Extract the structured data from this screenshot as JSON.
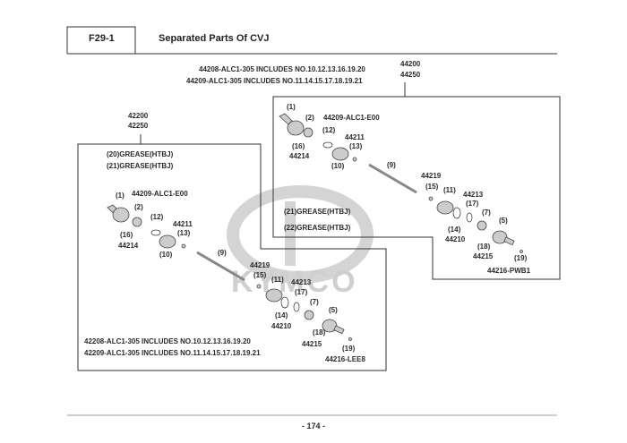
{
  "header": {
    "code": "F29-1",
    "title": "Separated Parts Of CVJ"
  },
  "page_number": "- 174 -",
  "watermark": "KYMCO",
  "right_assembly": {
    "includes": [
      "44208-ALC1-305 INCLUDES NO.10.12.13.16.19.20",
      "44209-ALC1-305 INCLUDES NO.11.14.15.17.18.19.21"
    ],
    "part_numbers": [
      "44200",
      "44250"
    ],
    "grease": [
      "(21)GREASE(HTBJ)",
      "(22)GREASE(HTBJ)"
    ],
    "labels": [
      "(1)",
      "(2)",
      "44209-ALC1-E00",
      "(12)",
      "44211",
      "(13)",
      "(16)",
      "44214",
      "(10)",
      "(9)",
      "44219",
      "(15)",
      "(11)",
      "44213",
      "(17)",
      "(7)",
      "(14)",
      "44210",
      "(5)",
      "(18)",
      "44215",
      "(19)",
      "44216-PWB1"
    ]
  },
  "left_assembly": {
    "part_numbers": [
      "42200",
      "42250"
    ],
    "grease": [
      "(20)GREASE(HTBJ)",
      "(21)GREASE(HTBJ)"
    ],
    "includes": [
      "42208-ALC1-305 INCLUDES NO.10.12.13.16.19.20",
      "42209-ALC1-305 INCLUDES NO.11.14.15.17.18.19.21"
    ],
    "labels": [
      "(1)",
      "44209-ALC1-E00",
      "(2)",
      "(12)",
      "44211",
      "(13)",
      "(16)",
      "44214",
      "(10)",
      "(9)",
      "44219",
      "(15)",
      "(11)",
      "44213",
      "(17)",
      "(7)",
      "(5)",
      "(14)",
      "44210",
      "(18)",
      "44215",
      "(19)",
      "44216-LEE8"
    ]
  }
}
